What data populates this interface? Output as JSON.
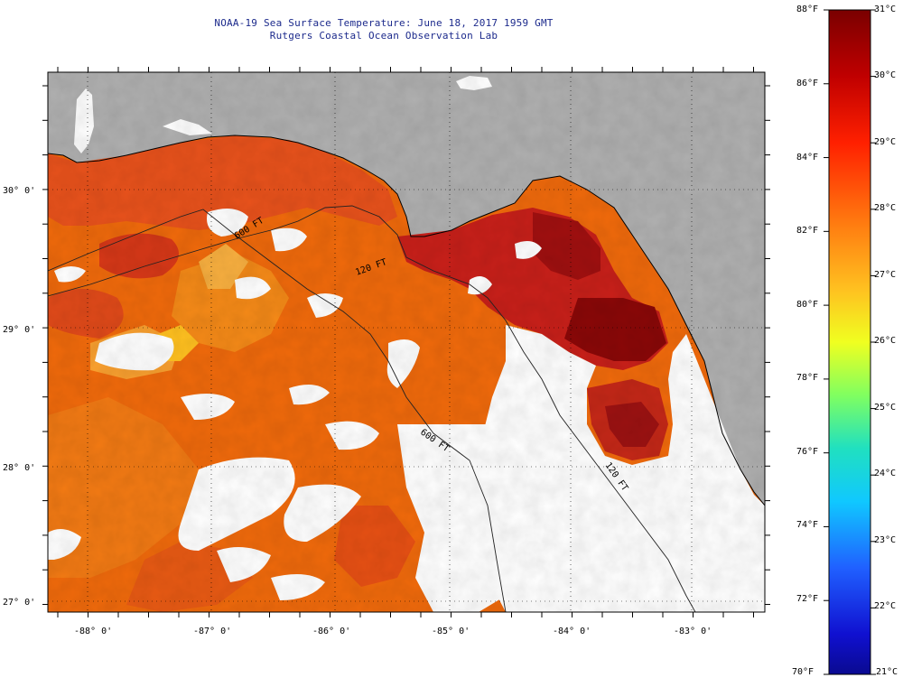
{
  "title": {
    "line1": "NOAA-19 Sea Surface Temperature:  June 18, 2017 1959 GMT",
    "line2": "Rutgers Coastal Ocean Observation Lab"
  },
  "map": {
    "lon_range": [
      -88.35,
      -82.4
    ],
    "lat_range": [
      26.93,
      30.85
    ],
    "lon_ticks": [
      {
        "value": -88,
        "label": "-88° 0'"
      },
      {
        "value": -87,
        "label": "-87° 0'"
      },
      {
        "value": -86,
        "label": "-86° 0'"
      },
      {
        "value": -85,
        "label": "-85° 0'"
      },
      {
        "value": -84,
        "label": "-84° 0'"
      },
      {
        "value": -83,
        "label": "-83° 0'"
      }
    ],
    "lat_ticks": [
      {
        "value": 27,
        "label": "27° 0'"
      },
      {
        "value": 28,
        "label": "28° 0'"
      },
      {
        "value": 29,
        "label": "29° 0'"
      },
      {
        "value": 30,
        "label": "30° 0'"
      }
    ],
    "isobath_labels": [
      "600 FT",
      "120 FT",
      "600 FT",
      "120 FT"
    ],
    "colors": {
      "land": "#b0b0b0",
      "cloud": "#ffffff",
      "coast": "#000000"
    }
  },
  "colorbar": {
    "fahrenheit": [
      "88°F",
      "86°F",
      "84°F",
      "82°F",
      "80°F",
      "78°F",
      "76°F",
      "74°F",
      "72°F",
      "70°F"
    ],
    "celsius": [
      "31°C",
      "30°C",
      "29°C",
      "28°C",
      "27°C",
      "26°C",
      "25°C",
      "24°C",
      "23°C",
      "22°C",
      "21°C"
    ],
    "range_f": [
      70,
      88
    ],
    "range_c": [
      21,
      31
    ]
  }
}
